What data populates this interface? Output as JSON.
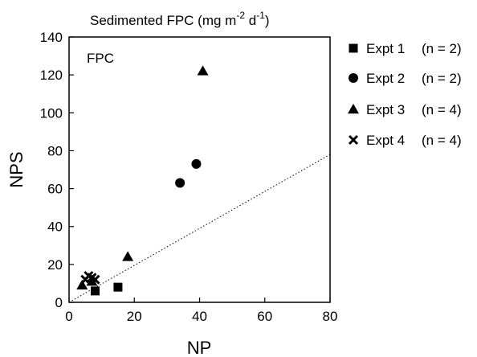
{
  "chart_data": {
    "type": "scatter",
    "title": "Sedimented FPC (mg m⁻² d⁻¹)",
    "title_parts": {
      "base": "Sedimented FPC (mg m",
      "exp1": "-2",
      "mid": " d",
      "exp2": "-1",
      "end": ")"
    },
    "panel_label": "FPC",
    "xlabel": "NP",
    "ylabel": "NPS",
    "xlim": [
      0,
      80
    ],
    "ylim": [
      0,
      140
    ],
    "x_ticks": [
      0,
      20,
      40,
      60,
      80
    ],
    "y_ticks": [
      0,
      20,
      40,
      60,
      80,
      100,
      120,
      140
    ],
    "grid": false,
    "legend_position": "right",
    "series": [
      {
        "name": "Expt 1",
        "n_label": "(n = 2)",
        "marker": "square",
        "points": [
          [
            8,
            6
          ],
          [
            15,
            8
          ]
        ]
      },
      {
        "name": "Expt 2",
        "n_label": "(n = 2)",
        "marker": "circle",
        "points": [
          [
            34,
            63
          ],
          [
            39,
            73
          ]
        ]
      },
      {
        "name": "Expt 3",
        "n_label": "(n = 4)",
        "marker": "triangle",
        "points": [
          [
            4,
            9
          ],
          [
            7,
            11
          ],
          [
            18,
            24
          ],
          [
            41,
            122
          ]
        ]
      },
      {
        "name": "Expt 4",
        "n_label": "(n = 4)",
        "marker": "cross",
        "points": [
          [
            5,
            12
          ],
          [
            6,
            14
          ],
          [
            7,
            13
          ],
          [
            8,
            12
          ]
        ]
      }
    ],
    "reference_line": {
      "style": "dotted",
      "x": [
        0,
        80
      ],
      "y": [
        0,
        78
      ]
    }
  }
}
